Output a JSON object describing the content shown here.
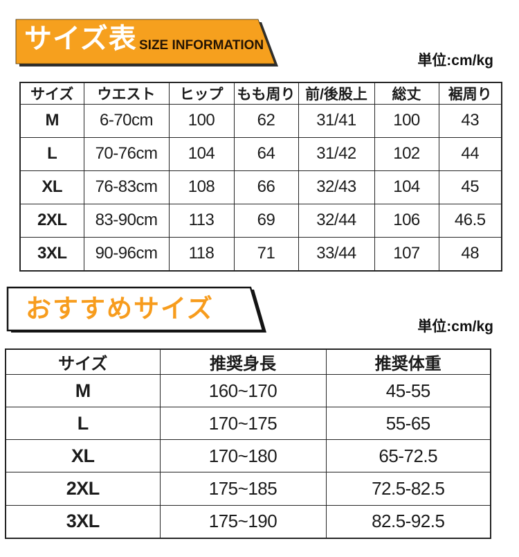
{
  "colors": {
    "accent_orange": "#f6a01e",
    "banner2_text_orange": "#f79c1d",
    "shadow_dark": "#2f2f2f",
    "outline_black": "#141414",
    "table_border": "#242424",
    "text": "#1b1b1b"
  },
  "banner1": {
    "title": "サイズ表",
    "subtitle": "SIZE INFORMATION"
  },
  "banner2": {
    "title": "おすすめサイズ"
  },
  "unit_label_top": "単位:cm/kg",
  "unit_label_bottom": "単位:cm/kg",
  "tables": {
    "size_table": {
      "headers": [
        "サイズ",
        "ウエスト",
        "ヒップ",
        "もも周り",
        "前/後股上",
        "総丈",
        "裾周り"
      ],
      "rows": [
        [
          "M",
          "6-70cm",
          "100",
          "62",
          "31/41",
          "100",
          "43"
        ],
        [
          "L",
          "70-76cm",
          "104",
          "64",
          "31/42",
          "102",
          "44"
        ],
        [
          "XL",
          "76-83cm",
          "108",
          "66",
          "32/43",
          "104",
          "45"
        ],
        [
          "2XL",
          "83-90cm",
          "113",
          "69",
          "32/44",
          "106",
          "46.5"
        ],
        [
          "3XL",
          "90-96cm",
          "118",
          "71",
          "33/44",
          "107",
          "48"
        ]
      ]
    },
    "recommend_table": {
      "headers": [
        "サイズ",
        "推奨身長",
        "推奨体重"
      ],
      "rows": [
        [
          "M",
          "160~170",
          "45-55"
        ],
        [
          "L",
          "170~175",
          "55-65"
        ],
        [
          "XL",
          "170~180",
          "65-72.5"
        ],
        [
          "2XL",
          "175~185",
          "72.5-82.5"
        ],
        [
          "3XL",
          "175~190",
          "82.5-92.5"
        ]
      ]
    }
  }
}
